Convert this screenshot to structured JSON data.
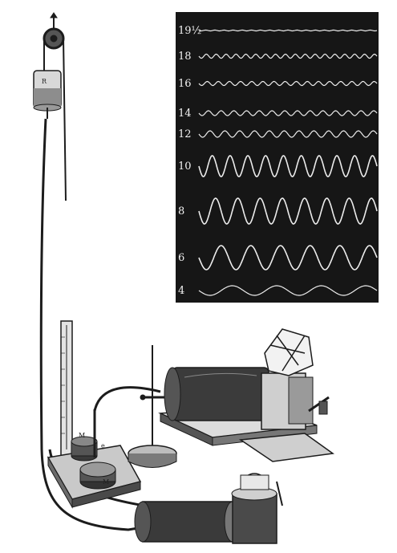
{
  "figure": {
    "kymograph_panel": {
      "trace_labels": [
        {
          "text": "19½",
          "frequency": 19.5,
          "amplitude": 0.5
        },
        {
          "text": "18",
          "frequency": 18,
          "amplitude": 2.5
        },
        {
          "text": "16",
          "frequency": 16,
          "amplitude": 2.5
        },
        {
          "text": "14",
          "frequency": 14,
          "amplitude": 3
        },
        {
          "text": "12",
          "frequency": 12,
          "amplitude": 4
        },
        {
          "text": "10",
          "frequency": 10,
          "amplitude": 13
        },
        {
          "text": "8",
          "frequency": 8,
          "amplitude": 16
        },
        {
          "text": "6",
          "frequency": 6,
          "amplitude": 15
        },
        {
          "text": "4",
          "frequency": 4,
          "amplitude": 6
        }
      ]
    },
    "apparatus_labels": {
      "pulley_weight": "R",
      "reservoir_1": "M",
      "reservoir_2": "M",
      "valve": "e"
    },
    "colors": {
      "panel_background": "#161616",
      "trace_color": "#ececec",
      "ink": "#1c1c1c"
    }
  }
}
